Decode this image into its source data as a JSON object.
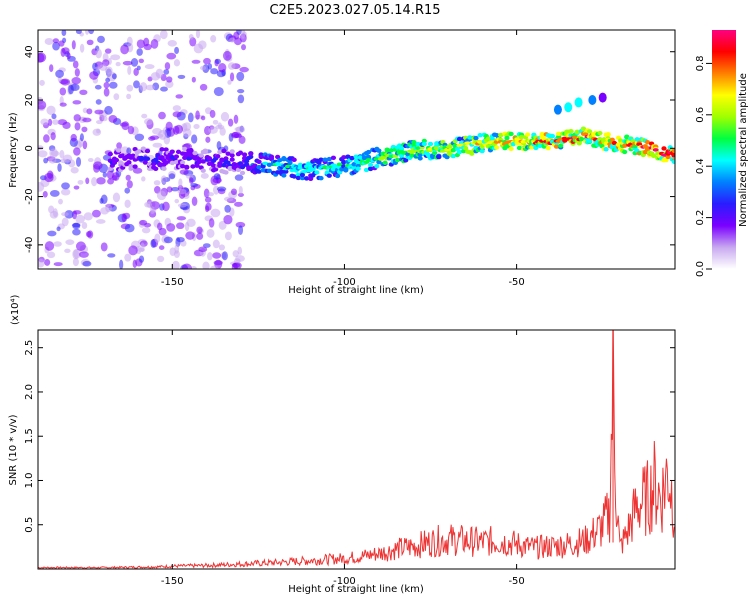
{
  "title": "C2E5.2023.027.05.14.R15",
  "chart_data": [
    {
      "type": "heatmap",
      "xlabel": "Height of straight line (km)",
      "ylabel": "Frequency (Hz)",
      "xlim": [
        -189,
        -4
      ],
      "ylim": [
        -50,
        49
      ],
      "x_ticks": [
        -150,
        -100,
        -50
      ],
      "y_ticks": [
        40,
        20,
        0,
        -20,
        -40
      ],
      "colorbar": {
        "label": "Normalized spectral amplitude",
        "range": [
          0.0,
          0.93
        ],
        "ticks": [
          0.0,
          0.2,
          0.4,
          0.6,
          0.8
        ],
        "colors": [
          "#ffffff",
          "#c8a8f0",
          "#7a00ff",
          "#2a1cff",
          "#0080ff",
          "#00ffff",
          "#00ff40",
          "#a0ff00",
          "#ffff00",
          "#ff8000",
          "#ff0000",
          "#ff0080"
        ]
      },
      "ridge": {
        "x": [
          -165,
          -150,
          -140,
          -130,
          -120,
          -110,
          -100,
          -90,
          -80,
          -70,
          -60,
          -50,
          -40,
          -30,
          -25,
          -20,
          -15,
          -10,
          -4
        ],
        "y": [
          -5,
          -4,
          -5,
          -6,
          -7,
          -9,
          -7,
          -4,
          -1,
          0,
          2,
          3,
          3,
          5,
          3,
          2,
          1,
          -1,
          -3
        ],
        "amplitude": [
          0.25,
          0.3,
          0.25,
          0.3,
          0.45,
          0.5,
          0.45,
          0.55,
          0.6,
          0.65,
          0.7,
          0.75,
          0.8,
          0.85,
          0.75,
          0.85,
          0.8,
          0.9,
          0.9
        ]
      },
      "secondary_band": {
        "x": [
          -38,
          -35,
          -32,
          -28,
          -25
        ],
        "y": [
          16,
          17,
          19,
          20,
          21
        ],
        "amplitude": [
          0.35,
          0.4,
          0.45,
          0.3,
          0.2
        ]
      }
    },
    {
      "type": "line",
      "xlabel": "Height of straight line (km)",
      "ylabel": "SNR (10 * v/v)",
      "y_multiplier": "(x10⁴)",
      "xlim": [
        -189,
        -4
      ],
      "ylim": [
        0,
        2.7
      ],
      "x_ticks": [
        -150,
        -100,
        -50
      ],
      "y_ticks": [
        0.5,
        1.0,
        1.5,
        2.0,
        2.5
      ],
      "series": [
        {
          "color": "#ee3333",
          "x": [
            -189,
            -170,
            -155,
            -150,
            -140,
            -130,
            -120,
            -110,
            -100,
            -95,
            -90,
            -85,
            -80,
            -75,
            -70,
            -65,
            -60,
            -55,
            -50,
            -45,
            -40,
            -35,
            -30,
            -25,
            -23,
            -22,
            -21,
            -20,
            -18,
            -15,
            -12,
            -10,
            -8,
            -6,
            -4
          ],
          "y": [
            0.02,
            0.02,
            0.03,
            0.04,
            0.05,
            0.07,
            0.09,
            0.12,
            0.15,
            0.18,
            0.22,
            0.28,
            0.32,
            0.38,
            0.42,
            0.4,
            0.38,
            0.4,
            0.35,
            0.3,
            0.32,
            0.35,
            0.4,
            0.6,
            0.8,
            2.7,
            1.0,
            0.3,
            0.5,
            0.9,
            1.0,
            1.2,
            1.0,
            1.4,
            0.8
          ]
        }
      ]
    }
  ]
}
